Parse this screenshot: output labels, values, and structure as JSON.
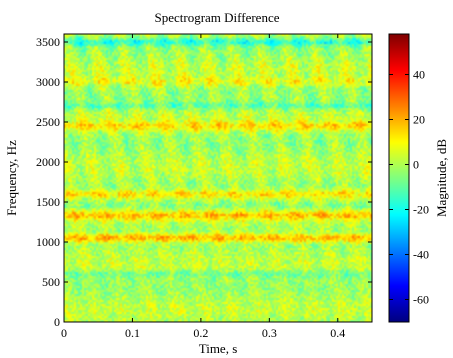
{
  "chart_data": {
    "type": "heatmap",
    "title": "Spectrogram Difference",
    "xlabel": "Time, s",
    "ylabel": "Frequency, Hz",
    "colorbar_label": "Magnitude, dB",
    "xlim": [
      0,
      0.45
    ],
    "ylim": [
      0,
      3600
    ],
    "x_ticks": [
      "0",
      "0.1",
      "0.2",
      "0.3",
      "0.4"
    ],
    "y_ticks": [
      "0",
      "500",
      "1000",
      "1500",
      "2000",
      "2500",
      "3000",
      "3500"
    ],
    "colorbar_range": [
      -70,
      58
    ],
    "colorbar_ticks": [
      "40",
      "20",
      "0",
      "-20",
      "-40",
      "-60"
    ],
    "colormap": "jet",
    "typical_range_db": [
      -25,
      25
    ],
    "bright_bands_hz": [
      {
        "center": 1050,
        "level_db": 22
      },
      {
        "center": 1330,
        "level_db": 15
      },
      {
        "center": 1600,
        "level_db": 16
      },
      {
        "center": 2450,
        "level_db": 13
      },
      {
        "center": 3000,
        "level_db": 8
      }
    ],
    "dark_bands_hz": [
      {
        "center": 600,
        "level_db": -8
      },
      {
        "center": 1450,
        "level_db": -6
      },
      {
        "center": 2700,
        "level_db": -10
      },
      {
        "center": 3500,
        "level_db": -15
      }
    ]
  }
}
